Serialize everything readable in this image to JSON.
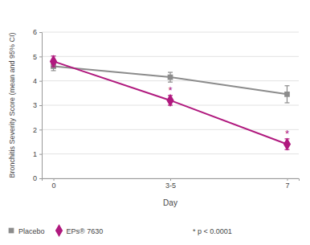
{
  "chart_data": {
    "type": "line",
    "x_label": "Day",
    "y_label": "Bronchitis Severity Score (mean and 95% CI)",
    "categories": [
      "0",
      "3-5",
      "7"
    ],
    "ylim": [
      0,
      6
    ],
    "yticks": [
      0,
      1,
      2,
      3,
      4,
      5,
      6
    ],
    "grid": true,
    "legend": "bottom",
    "series": [
      {
        "name": "Placebo",
        "color": "#8c8c8c",
        "marker": "square",
        "line_style": "solid",
        "values": [
          4.6,
          4.15,
          3.45
        ],
        "errors": [
          0.18,
          0.2,
          0.35
        ]
      },
      {
        "name": "EPs® 7630",
        "color": "#b0197e",
        "marker": "diamond",
        "line_style": "solid",
        "values": [
          4.8,
          3.2,
          1.4
        ],
        "errors": [
          0.22,
          0.2,
          0.22
        ]
      }
    ],
    "annotations": [
      {
        "text": "*",
        "category": "3-5",
        "series": "EPs® 7630"
      },
      {
        "text": "*",
        "category": "7",
        "series": "EPs® 7630"
      }
    ],
    "note": "* p < 0.0001"
  }
}
